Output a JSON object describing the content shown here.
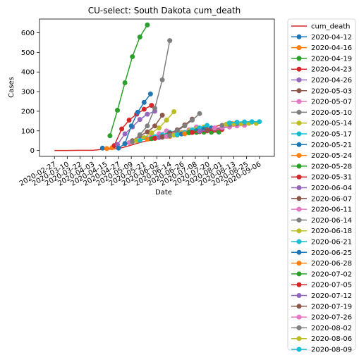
{
  "chart_data": {
    "type": "line",
    "title": "CU-select: South Dakota cum_death",
    "xlabel": "Date",
    "ylabel": "Cases",
    "xlim": [
      "2020-02-13",
      "2020-09-20"
    ],
    "ylim": [
      -30,
      670
    ],
    "x_ticks": [
      "2020-02-27",
      "2020-03-10",
      "2020-03-22",
      "2020-04-03",
      "2020-04-15",
      "2020-04-27",
      "2020-05-09",
      "2020-05-21",
      "2020-06-02",
      "2020-06-14",
      "2020-06-26",
      "2020-07-08",
      "2020-07-20",
      "2020-08-01",
      "2020-08-13",
      "2020-08-25",
      "2020-09-06"
    ],
    "y_ticks": [
      0,
      100,
      200,
      300,
      400,
      500,
      600
    ],
    "legend_position": "outside-right",
    "grid": false,
    "series": [
      {
        "name": "cum_death",
        "color": "#d62728",
        "marker": false,
        "points": [
          [
            "2020-02-27",
            0
          ],
          [
            "2020-03-10",
            0
          ],
          [
            "2020-03-22",
            1
          ],
          [
            "2020-04-03",
            1
          ],
          [
            "2020-04-12",
            6
          ],
          [
            "2020-04-20",
            7
          ],
          [
            "2020-04-27",
            10
          ],
          [
            "2020-05-05",
            21
          ],
          [
            "2020-05-13",
            34
          ],
          [
            "2020-05-21",
            46
          ],
          [
            "2020-05-29",
            54
          ],
          [
            "2020-06-06",
            62
          ],
          [
            "2020-06-14",
            71
          ],
          [
            "2020-06-22",
            78
          ],
          [
            "2020-06-30",
            91
          ],
          [
            "2020-07-08",
            98
          ],
          [
            "2020-07-16",
            108
          ],
          [
            "2020-07-24",
            117
          ],
          [
            "2020-08-01",
            131
          ],
          [
            "2020-08-09",
            144
          ],
          [
            "2020-08-12",
            146
          ]
        ]
      },
      {
        "name": "2020-04-12",
        "color": "#1f77b4",
        "points": [
          [
            "2020-04-12",
            12
          ]
        ]
      },
      {
        "name": "2020-04-16",
        "color": "#ff7f0e",
        "points": [
          [
            "2020-04-16",
            10
          ],
          [
            "2020-04-21",
            14
          ]
        ]
      },
      {
        "name": "2020-04-19",
        "color": "#2ca02c",
        "points": [
          [
            "2020-04-19",
            75
          ],
          [
            "2020-04-26",
            205
          ],
          [
            "2020-05-03",
            345
          ],
          [
            "2020-05-10",
            478
          ],
          [
            "2020-05-17",
            578
          ],
          [
            "2020-05-24",
            640
          ]
        ]
      },
      {
        "name": "2020-04-23",
        "color": "#d62728",
        "points": [
          [
            "2020-04-23",
            25
          ],
          [
            "2020-04-30",
            110
          ],
          [
            "2020-05-07",
            155
          ],
          [
            "2020-05-14",
            185
          ],
          [
            "2020-05-21",
            210
          ],
          [
            "2020-05-28",
            230
          ]
        ]
      },
      {
        "name": "2020-04-26",
        "color": "#9467bd",
        "points": [
          [
            "2020-04-26",
            30
          ],
          [
            "2020-05-03",
            85
          ],
          [
            "2020-05-10",
            120
          ],
          [
            "2020-05-17",
            158
          ],
          [
            "2020-05-24",
            185
          ],
          [
            "2020-05-31",
            200
          ]
        ]
      },
      {
        "name": "2020-05-03",
        "color": "#8c564b",
        "points": [
          [
            "2020-05-03",
            35
          ],
          [
            "2020-05-10",
            50
          ],
          [
            "2020-05-17",
            75
          ],
          [
            "2020-05-24",
            95
          ],
          [
            "2020-05-31",
            125
          ],
          [
            "2020-06-07",
            180
          ]
        ]
      },
      {
        "name": "2020-05-07",
        "color": "#e377c2",
        "points": [
          [
            "2020-05-07",
            40
          ],
          [
            "2020-05-14",
            55
          ],
          [
            "2020-05-21",
            65
          ],
          [
            "2020-05-28",
            72
          ],
          [
            "2020-06-04",
            85
          ],
          [
            "2020-06-11",
            100
          ]
        ]
      },
      {
        "name": "2020-05-10",
        "color": "#7f7f7f",
        "points": [
          [
            "2020-05-10",
            45
          ],
          [
            "2020-05-17",
            80
          ],
          [
            "2020-05-24",
            125
          ],
          [
            "2020-05-31",
            215
          ],
          [
            "2020-06-07",
            360
          ],
          [
            "2020-06-14",
            560
          ]
        ]
      },
      {
        "name": "2020-05-14",
        "color": "#bcbd22",
        "points": [
          [
            "2020-05-14",
            50
          ],
          [
            "2020-05-21",
            65
          ],
          [
            "2020-05-28",
            90
          ],
          [
            "2020-06-04",
            115
          ],
          [
            "2020-06-11",
            155
          ],
          [
            "2020-06-18",
            198
          ]
        ]
      },
      {
        "name": "2020-05-17",
        "color": "#17becf",
        "points": [
          [
            "2020-05-17",
            52
          ],
          [
            "2020-05-24",
            60
          ],
          [
            "2020-05-31",
            70
          ],
          [
            "2020-06-07",
            80
          ],
          [
            "2020-06-14",
            92
          ],
          [
            "2020-06-21",
            100
          ]
        ]
      },
      {
        "name": "2020-05-21",
        "color": "#1f77b4",
        "points": [
          [
            "2020-04-27",
            12
          ],
          [
            "2020-05-03",
            35
          ],
          [
            "2020-05-09",
            125
          ],
          [
            "2020-05-15",
            195
          ],
          [
            "2020-05-21",
            245
          ],
          [
            "2020-05-27",
            288
          ]
        ]
      },
      {
        "name": "2020-05-24",
        "color": "#ff7f0e",
        "points": [
          [
            "2020-05-24",
            58
          ],
          [
            "2020-05-31",
            62
          ],
          [
            "2020-06-07",
            68
          ],
          [
            "2020-06-14",
            72
          ],
          [
            "2020-06-21",
            78
          ],
          [
            "2020-06-28",
            85
          ]
        ]
      },
      {
        "name": "2020-05-28",
        "color": "#2ca02c",
        "points": [
          [
            "2020-05-28",
            60
          ],
          [
            "2020-06-04",
            66
          ],
          [
            "2020-06-11",
            74
          ],
          [
            "2020-06-18",
            80
          ],
          [
            "2020-06-25",
            86
          ],
          [
            "2020-07-02",
            92
          ]
        ]
      },
      {
        "name": "2020-05-31",
        "color": "#d62728",
        "points": [
          [
            "2020-05-31",
            62
          ],
          [
            "2020-06-07",
            70
          ],
          [
            "2020-06-14",
            78
          ],
          [
            "2020-06-21",
            85
          ],
          [
            "2020-06-28",
            90
          ],
          [
            "2020-07-05",
            95
          ]
        ]
      },
      {
        "name": "2020-06-04",
        "color": "#9467bd",
        "points": [
          [
            "2020-06-04",
            66
          ],
          [
            "2020-06-11",
            72
          ],
          [
            "2020-06-18",
            80
          ],
          [
            "2020-06-25",
            88
          ],
          [
            "2020-07-02",
            95
          ],
          [
            "2020-07-09",
            100
          ]
        ]
      },
      {
        "name": "2020-06-07",
        "color": "#8c564b",
        "points": [
          [
            "2020-06-07",
            68
          ],
          [
            "2020-06-14",
            88
          ],
          [
            "2020-06-21",
            105
          ],
          [
            "2020-06-28",
            130
          ],
          [
            "2020-07-05",
            160
          ]
        ]
      },
      {
        "name": "2020-06-11",
        "color": "#e377c2",
        "points": [
          [
            "2020-06-11",
            72
          ],
          [
            "2020-06-18",
            82
          ],
          [
            "2020-06-25",
            92
          ],
          [
            "2020-07-02",
            105
          ],
          [
            "2020-07-09",
            120
          ]
        ]
      },
      {
        "name": "2020-06-14",
        "color": "#7f7f7f",
        "points": [
          [
            "2020-06-14",
            76
          ],
          [
            "2020-06-21",
            100
          ],
          [
            "2020-06-28",
            125
          ],
          [
            "2020-07-05",
            155
          ],
          [
            "2020-07-12",
            188
          ]
        ]
      },
      {
        "name": "2020-06-18",
        "color": "#bcbd22",
        "points": [
          [
            "2020-06-18",
            78
          ],
          [
            "2020-06-25",
            90
          ],
          [
            "2020-07-02",
            100
          ],
          [
            "2020-07-09",
            110
          ],
          [
            "2020-07-16",
            120
          ]
        ]
      },
      {
        "name": "2020-06-21",
        "color": "#17becf",
        "points": [
          [
            "2020-06-21",
            80
          ],
          [
            "2020-06-28",
            92
          ],
          [
            "2020-07-05",
            105
          ],
          [
            "2020-07-12",
            115
          ],
          [
            "2020-07-19",
            128
          ]
        ]
      },
      {
        "name": "2020-06-25",
        "color": "#1f77b4",
        "points": [
          [
            "2020-06-25",
            84
          ],
          [
            "2020-07-02",
            92
          ],
          [
            "2020-07-09",
            100
          ],
          [
            "2020-07-16",
            108
          ],
          [
            "2020-07-23",
            115
          ]
        ]
      },
      {
        "name": "2020-06-28",
        "color": "#ff7f0e",
        "points": [
          [
            "2020-06-28",
            86
          ],
          [
            "2020-07-05",
            92
          ],
          [
            "2020-07-12",
            96
          ],
          [
            "2020-07-19",
            100
          ],
          [
            "2020-07-26",
            105
          ]
        ]
      },
      {
        "name": "2020-07-02",
        "color": "#2ca02c",
        "points": [
          [
            "2020-07-02",
            90
          ],
          [
            "2020-07-09",
            92
          ],
          [
            "2020-07-16",
            93
          ],
          [
            "2020-07-23",
            93
          ],
          [
            "2020-07-30",
            94
          ]
        ]
      },
      {
        "name": "2020-07-05",
        "color": "#d62728",
        "points": [
          [
            "2020-07-05",
            92
          ],
          [
            "2020-07-12",
            96
          ],
          [
            "2020-07-19",
            100
          ],
          [
            "2020-07-26",
            104
          ],
          [
            "2020-08-02",
            108
          ]
        ]
      },
      {
        "name": "2020-07-12",
        "color": "#9467bd",
        "points": [
          [
            "2020-07-12",
            98
          ],
          [
            "2020-07-19",
            104
          ],
          [
            "2020-07-26",
            110
          ],
          [
            "2020-08-02",
            115
          ],
          [
            "2020-08-09",
            120
          ]
        ]
      },
      {
        "name": "2020-07-19",
        "color": "#8c564b",
        "points": [
          [
            "2020-07-19",
            106
          ],
          [
            "2020-07-26",
            112
          ],
          [
            "2020-08-02",
            118
          ],
          [
            "2020-08-09",
            124
          ],
          [
            "2020-08-16",
            130
          ]
        ]
      },
      {
        "name": "2020-07-26",
        "color": "#e377c2",
        "points": [
          [
            "2020-07-26",
            115
          ],
          [
            "2020-08-02",
            118
          ],
          [
            "2020-08-09",
            122
          ],
          [
            "2020-08-16",
            125
          ],
          [
            "2020-08-23",
            128
          ]
        ]
      },
      {
        "name": "2020-08-02",
        "color": "#7f7f7f",
        "points": [
          [
            "2020-08-02",
            128
          ],
          [
            "2020-08-09",
            132
          ],
          [
            "2020-08-16",
            136
          ],
          [
            "2020-08-23",
            140
          ],
          [
            "2020-08-30",
            145
          ]
        ]
      },
      {
        "name": "2020-08-06",
        "color": "#bcbd22",
        "points": [
          [
            "2020-08-06",
            134
          ],
          [
            "2020-08-13",
            136
          ],
          [
            "2020-08-20",
            137
          ],
          [
            "2020-08-27",
            138
          ],
          [
            "2020-09-03",
            138
          ]
        ]
      },
      {
        "name": "2020-08-09",
        "color": "#17becf",
        "points": [
          [
            "2020-08-09",
            140
          ],
          [
            "2020-08-16",
            144
          ],
          [
            "2020-08-23",
            146
          ],
          [
            "2020-08-30",
            147
          ],
          [
            "2020-09-06",
            147
          ]
        ]
      }
    ]
  }
}
